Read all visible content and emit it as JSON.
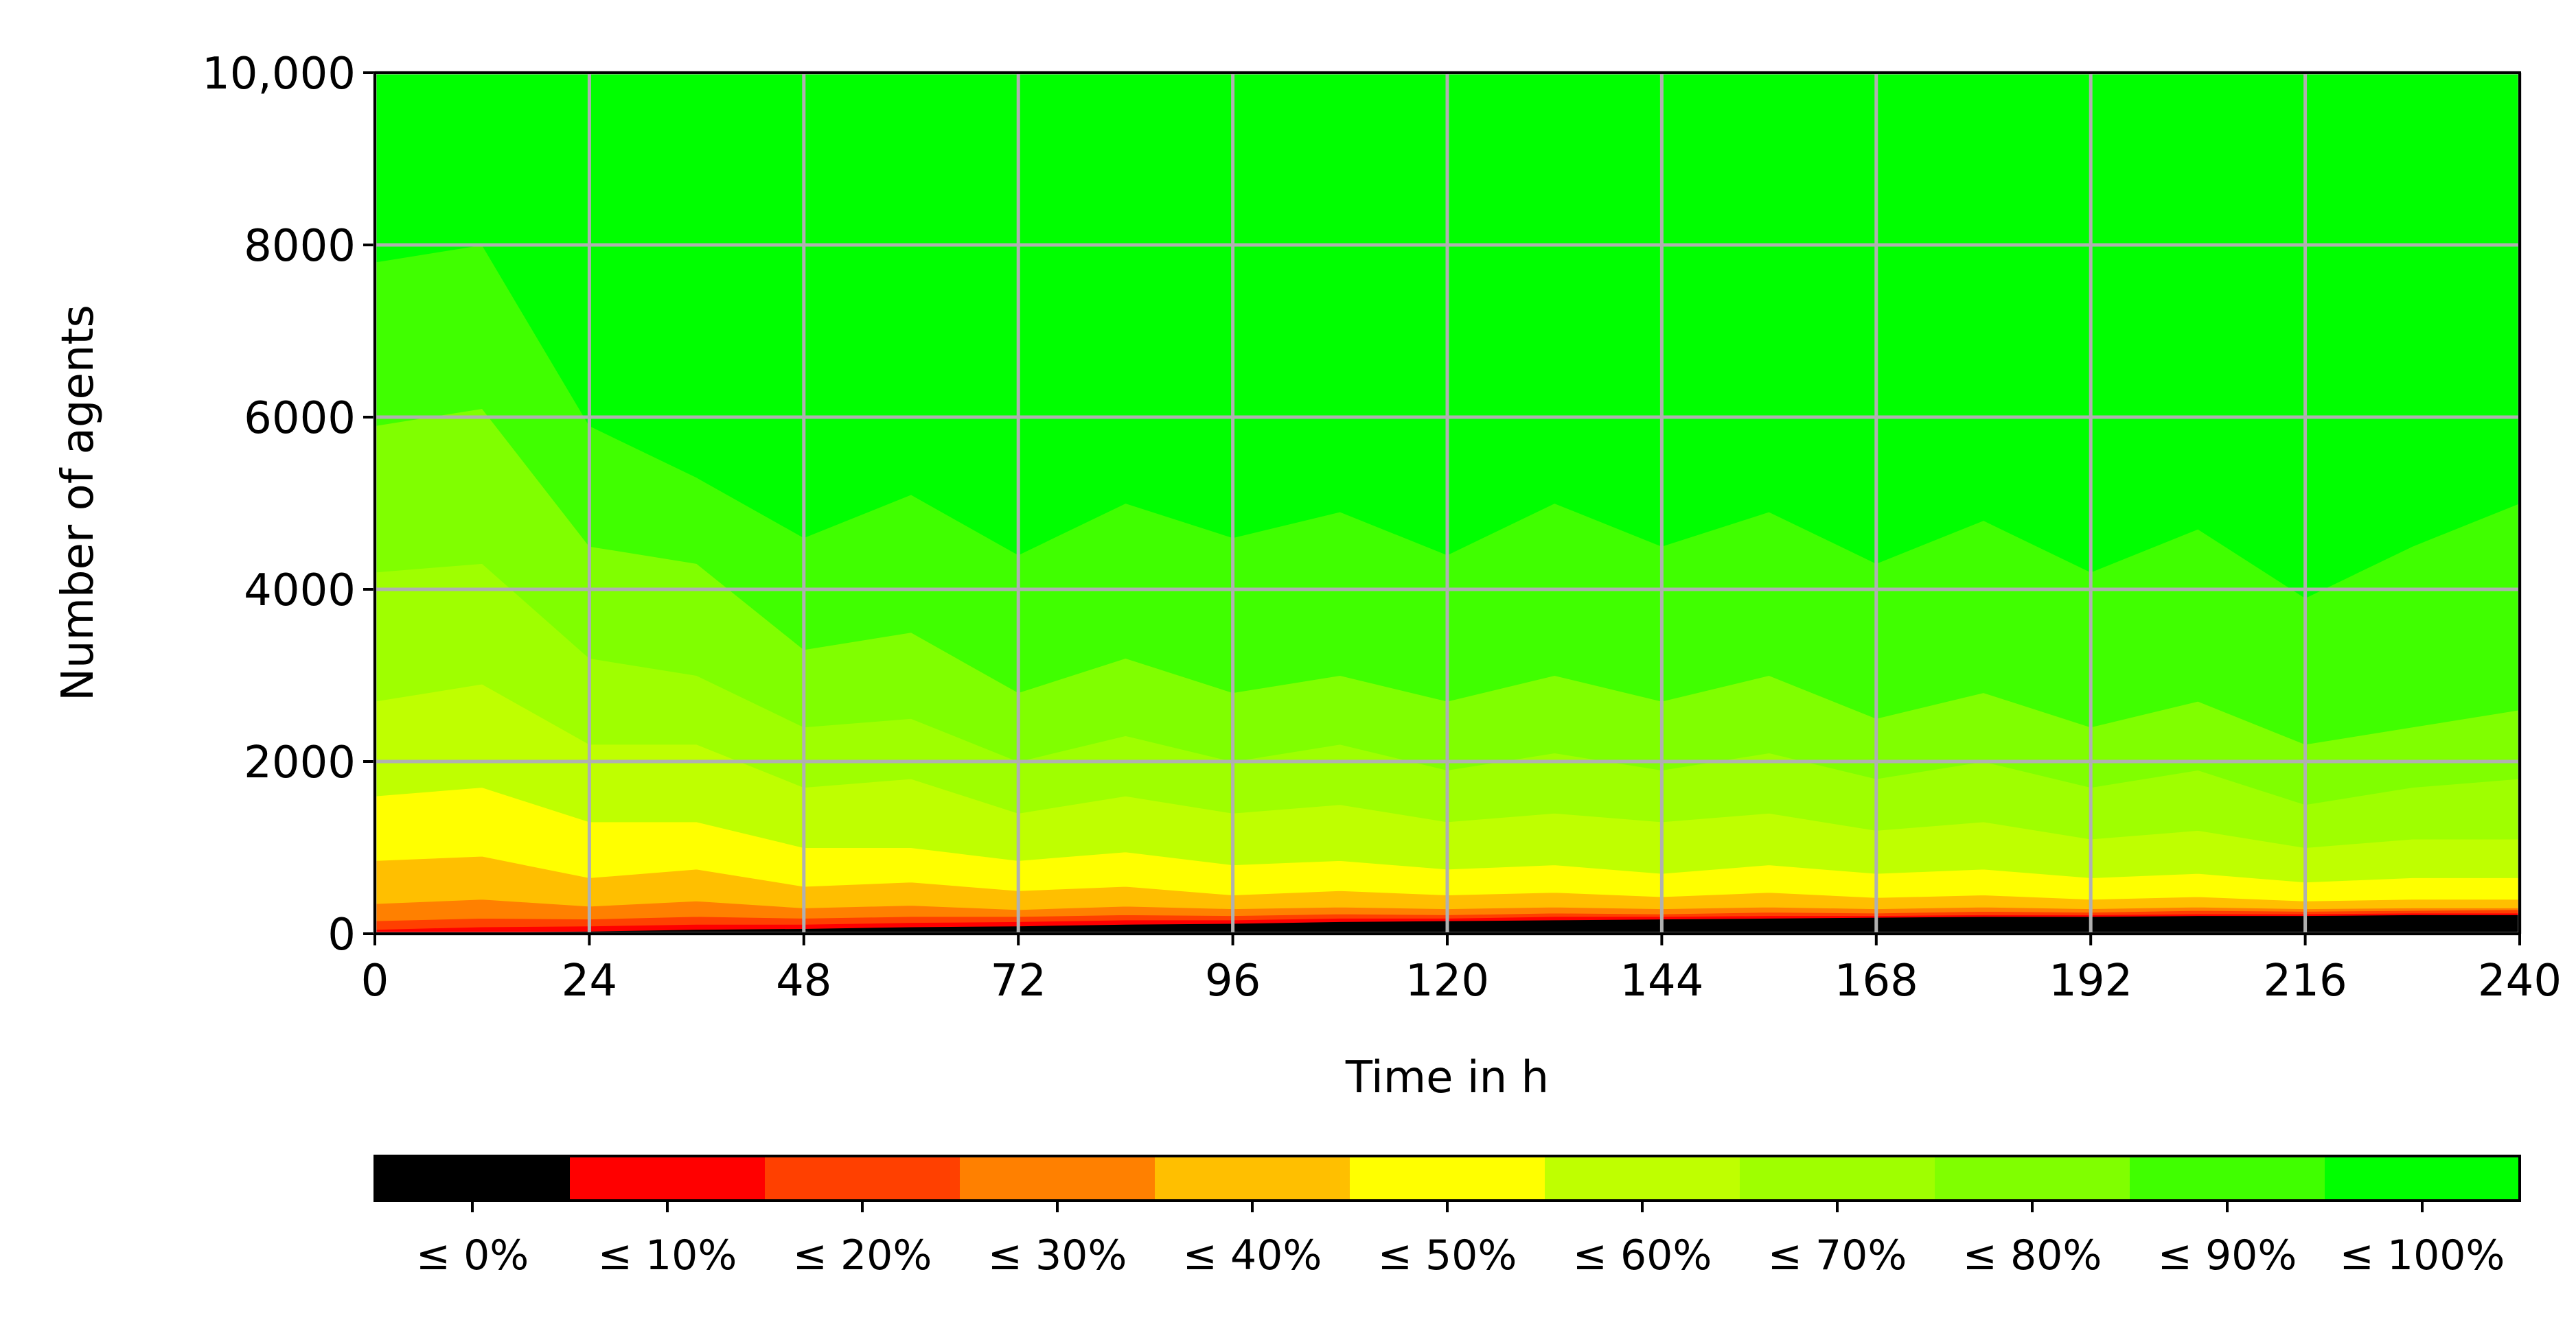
{
  "chart_data": {
    "type": "stacked-area",
    "x_label": "Time in h",
    "y_label": "Number of agents",
    "x": [
      0,
      12,
      24,
      36,
      48,
      60,
      72,
      84,
      96,
      108,
      120,
      132,
      144,
      156,
      168,
      180,
      192,
      204,
      216,
      228,
      240
    ],
    "xlim": [
      0,
      240
    ],
    "xticks": [
      0,
      24,
      48,
      72,
      96,
      120,
      144,
      168,
      192,
      216,
      240
    ],
    "ylim": [
      0,
      10000
    ],
    "yticks": [
      0,
      2000,
      4000,
      6000,
      8000,
      {
        "value": 10000,
        "label": "10,000"
      }
    ],
    "grid": true,
    "legend": "bottom",
    "series": [
      {
        "name": "≤ 0%",
        "color": "#000000",
        "values": [
          0,
          20,
          30,
          50,
          60,
          80,
          90,
          110,
          120,
          140,
          150,
          160,
          170,
          180,
          190,
          200,
          200,
          210,
          210,
          220,
          220
        ]
      },
      {
        "name": "≤ 10%",
        "color": "#ff0000",
        "values": [
          50,
          60,
          60,
          60,
          50,
          50,
          50,
          50,
          40,
          40,
          30,
          40,
          30,
          30,
          20,
          20,
          20,
          20,
          20,
          20,
          20
        ]
      },
      {
        "name": "≤ 20%",
        "color": "#ff4000",
        "values": [
          100,
          100,
          80,
          90,
          70,
          70,
          60,
          60,
          50,
          50,
          40,
          40,
          30,
          40,
          30,
          40,
          30,
          40,
          30,
          30,
          40
        ]
      },
      {
        "name": "≤ 30%",
        "color": "#ff8000",
        "values": [
          200,
          220,
          150,
          180,
          120,
          130,
          80,
          100,
          80,
          80,
          70,
          70,
          60,
          60,
          50,
          50,
          40,
          40,
          30,
          30,
          20
        ]
      },
      {
        "name": "≤ 40%",
        "color": "#ffbf00",
        "values": [
          500,
          500,
          330,
          370,
          250,
          270,
          220,
          230,
          160,
          190,
          160,
          170,
          140,
          170,
          130,
          140,
          110,
          120,
          90,
          100,
          100
        ]
      },
      {
        "name": "≤ 50%",
        "color": "#ffff00",
        "values": [
          750,
          800,
          650,
          550,
          450,
          400,
          350,
          400,
          350,
          350,
          300,
          320,
          270,
          320,
          280,
          300,
          250,
          270,
          220,
          250,
          250
        ]
      },
      {
        "name": "≤ 60%",
        "color": "#bfff00",
        "values": [
          1100,
          1200,
          900,
          900,
          700,
          800,
          550,
          650,
          600,
          650,
          550,
          600,
          600,
          600,
          500,
          550,
          450,
          500,
          400,
          450,
          450
        ]
      },
      {
        "name": "≤ 70%",
        "color": "#9fff00",
        "values": [
          1500,
          1400,
          1000,
          800,
          700,
          700,
          600,
          700,
          600,
          700,
          600,
          700,
          600,
          700,
          600,
          700,
          600,
          700,
          500,
          600,
          700
        ]
      },
      {
        "name": "≤ 80%",
        "color": "#80ff00",
        "values": [
          1700,
          1800,
          1300,
          1300,
          900,
          1000,
          800,
          900,
          800,
          800,
          800,
          900,
          800,
          900,
          700,
          800,
          700,
          800,
          700,
          700,
          800
        ]
      },
      {
        "name": "≤ 90%",
        "color": "#40ff00",
        "values": [
          1900,
          1900,
          1400,
          1000,
          1300,
          1600,
          1600,
          1800,
          1800,
          1900,
          1700,
          2000,
          1800,
          1900,
          1800,
          2000,
          1800,
          2000,
          1700,
          2100,
          2400
        ]
      },
      {
        "name": "≤ 100%",
        "color": "#00ff00",
        "values": [
          2200,
          2000,
          4100,
          4700,
          5400,
          4900,
          5600,
          5000,
          5400,
          5100,
          5600,
          5000,
          5500,
          5100,
          5700,
          5200,
          5800,
          5300,
          6100,
          5500,
          5000
        ]
      }
    ]
  }
}
